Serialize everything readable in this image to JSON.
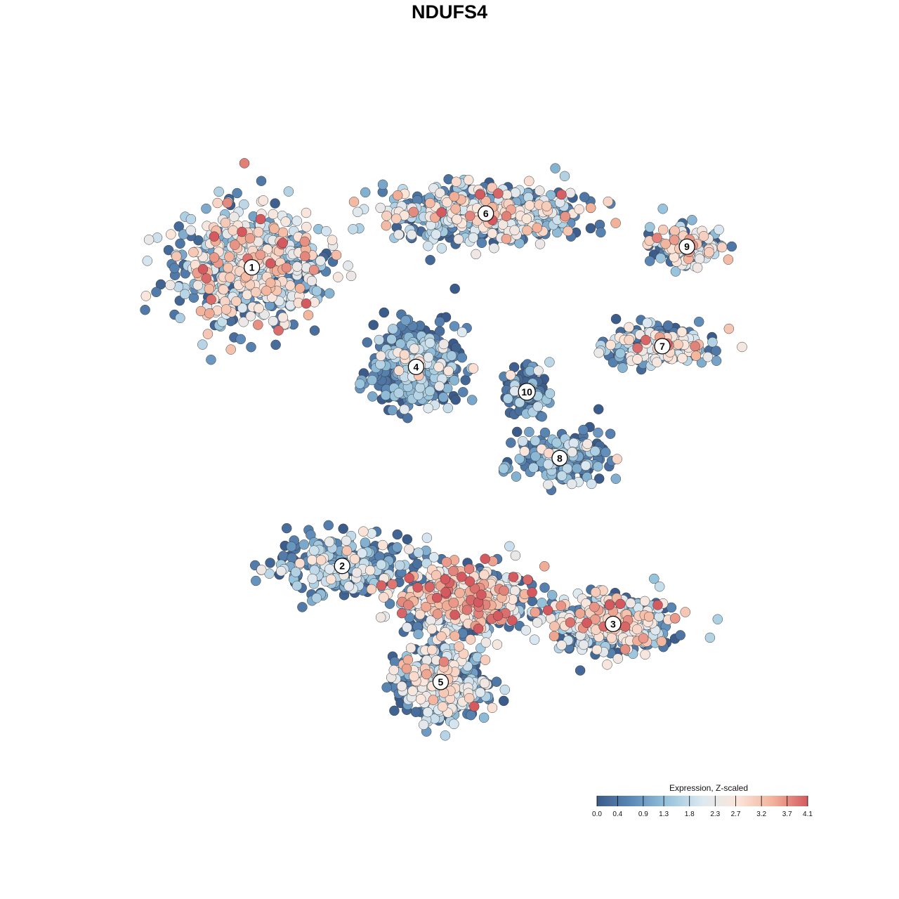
{
  "title": "NDUFS4",
  "chart_data": {
    "type": "scatter",
    "title": "NDUFS4",
    "xlabel": "",
    "ylabel": "",
    "axes_visible": false,
    "grid": false,
    "color_scale": {
      "title": "Expression, Z-scaled",
      "min": 0.0,
      "max": 4.1,
      "ticks": [
        "0.0",
        "0.4",
        "0.9",
        "1.3",
        "1.8",
        "2.3",
        "2.7",
        "3.2",
        "3.7",
        "4.1"
      ],
      "tick_values": [
        0.0,
        0.4,
        0.9,
        1.3,
        1.8,
        2.3,
        2.7,
        3.2,
        3.7,
        4.1
      ],
      "colors": [
        "#3b5b8a",
        "#5d8ab8",
        "#97c3dc",
        "#dde9f1",
        "#fbe6db",
        "#f2b39b",
        "#d45a5f"
      ],
      "legend_position": "bottom-right"
    },
    "clusters": [
      {
        "label": "1",
        "x": -6.2,
        "y": 4.6,
        "mean_expr": 1.9,
        "n": 700,
        "sx": 1.6,
        "sy": 1.2
      },
      {
        "label": "2",
        "x": -4.0,
        "y": -2.6,
        "mean_expr": 0.9,
        "n": 300,
        "sx": 1.5,
        "sy": 0.6
      },
      {
        "label": "3",
        "x": 2.6,
        "y": -4.0,
        "mean_expr": 1.9,
        "n": 450,
        "sx": 1.3,
        "sy": 0.6
      },
      {
        "label": "4",
        "x": -2.2,
        "y": 2.2,
        "mean_expr": 0.7,
        "n": 500,
        "sx": 0.9,
        "sy": 0.8
      },
      {
        "label": "5",
        "x": -1.6,
        "y": -5.4,
        "mean_expr": 1.5,
        "n": 450,
        "sx": 1.0,
        "sy": 0.8
      },
      {
        "label": "6",
        "x": -0.5,
        "y": 5.9,
        "mean_expr": 1.7,
        "n": 550,
        "sx": 2.2,
        "sy": 0.6
      },
      {
        "label": "7",
        "x": 3.8,
        "y": 2.7,
        "mean_expr": 1.8,
        "n": 200,
        "sx": 1.3,
        "sy": 0.4
      },
      {
        "label": "8",
        "x": 1.3,
        "y": 0.0,
        "mean_expr": 0.8,
        "n": 250,
        "sx": 0.9,
        "sy": 0.5
      },
      {
        "label": "9",
        "x": 4.4,
        "y": 5.1,
        "mean_expr": 2.0,
        "n": 150,
        "sx": 0.8,
        "sy": 0.4
      },
      {
        "label": "10",
        "x": 0.5,
        "y": 1.6,
        "mean_expr": 0.8,
        "n": 100,
        "sx": 0.5,
        "sy": 0.6
      },
      {
        "label": "",
        "x": -1.0,
        "y": -3.4,
        "mean_expr": 2.4,
        "n": 550,
        "sx": 1.4,
        "sy": 0.7
      }
    ],
    "xlim": [
      -9,
      7
    ],
    "ylim": [
      -7.5,
      8
    ]
  }
}
